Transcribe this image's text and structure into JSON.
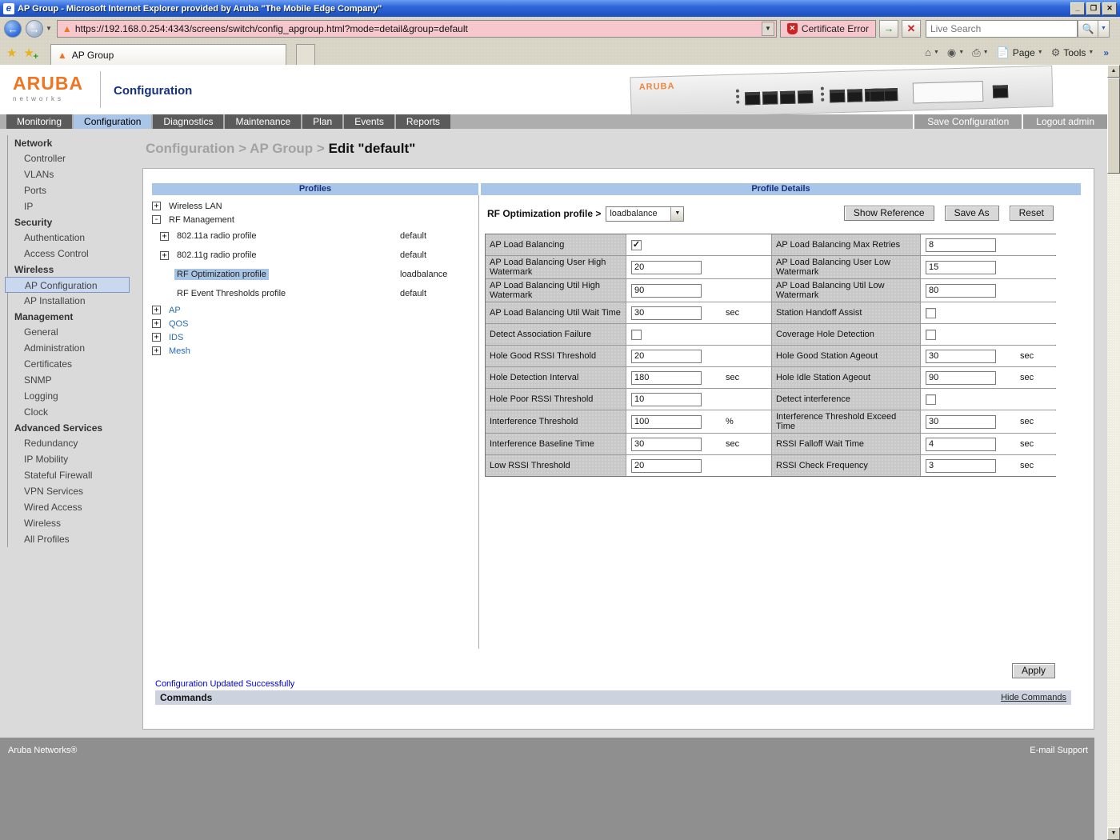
{
  "window": {
    "title": "AP Group - Microsoft Internet Explorer provided by Aruba \"The Mobile Edge Company\""
  },
  "browser": {
    "url": "https://192.168.0.254:4343/screens/switch/config_apgroup.html?mode=detail&group=default",
    "certificate_error": "Certificate Error",
    "search_placeholder": "Live Search",
    "tab_title": "AP Group",
    "page_label": "Page",
    "tools_label": "Tools"
  },
  "header": {
    "brand": "ARUBA",
    "brand_sub": "networks",
    "app_title": "Configuration"
  },
  "navbar": {
    "tabs": [
      {
        "label": "Monitoring",
        "active": false
      },
      {
        "label": "Configuration",
        "active": true
      },
      {
        "label": "Diagnostics",
        "active": false
      },
      {
        "label": "Maintenance",
        "active": false
      },
      {
        "label": "Plan",
        "active": false
      },
      {
        "label": "Events",
        "active": false
      },
      {
        "label": "Reports",
        "active": false
      }
    ],
    "save_configuration": "Save Configuration",
    "logout": "Logout admin"
  },
  "sidebar": {
    "selected": "AP Configuration",
    "sections": [
      {
        "title": "Network",
        "items": [
          "Controller",
          "VLANs",
          "Ports",
          "IP"
        ]
      },
      {
        "title": "Security",
        "items": [
          "Authentication",
          "Access Control"
        ]
      },
      {
        "title": "Wireless",
        "items": [
          "AP Configuration",
          "AP Installation"
        ]
      },
      {
        "title": "Management",
        "items": [
          "General",
          "Administration",
          "Certificates",
          "SNMP",
          "Logging",
          "Clock"
        ]
      },
      {
        "title": "Advanced Services",
        "items": [
          "Redundancy",
          "IP Mobility",
          "Stateful Firewall",
          "VPN Services",
          "Wired Access",
          "Wireless",
          "All Profiles"
        ]
      }
    ]
  },
  "breadcrumb": {
    "path": "Configuration > AP Group >",
    "current": "Edit \"default\""
  },
  "profiles": {
    "title": "Profiles",
    "tree": [
      {
        "label": "Wireless LAN",
        "toggle": "+",
        "indent": 0,
        "value": "",
        "link": false,
        "selected": false
      },
      {
        "label": "RF Management",
        "toggle": "-",
        "indent": 0,
        "value": "",
        "link": false,
        "selected": false
      },
      {
        "label": "802.11a radio profile",
        "toggle": "+",
        "indent": 1,
        "value": "default",
        "link": false,
        "selected": false
      },
      {
        "label": "802.11g radio profile",
        "toggle": "+",
        "indent": 1,
        "value": "default",
        "link": false,
        "selected": false
      },
      {
        "label": "RF Optimization profile",
        "toggle": "",
        "indent": 1,
        "value": "loadbalance",
        "link": false,
        "selected": true
      },
      {
        "label": "RF Event Thresholds profile",
        "toggle": "",
        "indent": 1,
        "value": "default",
        "link": false,
        "selected": false
      },
      {
        "label": "AP",
        "toggle": "+",
        "indent": 0,
        "value": "",
        "link": true,
        "selected": false
      },
      {
        "label": "QOS",
        "toggle": "+",
        "indent": 0,
        "value": "",
        "link": true,
        "selected": false
      },
      {
        "label": "IDS",
        "toggle": "+",
        "indent": 0,
        "value": "",
        "link": true,
        "selected": false
      },
      {
        "label": "Mesh",
        "toggle": "+",
        "indent": 0,
        "value": "",
        "link": true,
        "selected": false
      }
    ]
  },
  "details": {
    "title": "Profile Details",
    "profile_label": "RF Optimization profile >",
    "profile_select": "loadbalance",
    "buttons": [
      "Show Reference",
      "Save As",
      "Reset"
    ],
    "apply_label": "Apply",
    "rows": [
      {
        "left": {
          "label": "AP Load Balancing",
          "type": "checkbox",
          "checked": true
        },
        "right": {
          "label": "AP Load Balancing Max Retries",
          "type": "text",
          "value": "8"
        }
      },
      {
        "left": {
          "label": "AP Load Balancing User High Watermark",
          "type": "text",
          "value": "20"
        },
        "right": {
          "label": "AP Load Balancing User Low Watermark",
          "type": "text",
          "value": "15"
        }
      },
      {
        "left": {
          "label": "AP Load Balancing Util High Watermark",
          "type": "text",
          "value": "90"
        },
        "right": {
          "label": "AP Load Balancing Util Low Watermark",
          "type": "text",
          "value": "80"
        }
      },
      {
        "left": {
          "label": "AP Load Balancing Util Wait Time",
          "type": "text",
          "value": "30",
          "unit": "sec"
        },
        "right": {
          "label": "Station Handoff Assist",
          "type": "checkbox",
          "checked": false
        }
      },
      {
        "left": {
          "label": "Detect Association Failure",
          "type": "checkbox",
          "checked": false
        },
        "right": {
          "label": "Coverage Hole Detection",
          "type": "checkbox",
          "checked": false
        }
      },
      {
        "left": {
          "label": "Hole Good RSSI Threshold",
          "type": "text",
          "value": "20"
        },
        "right": {
          "label": "Hole Good Station Ageout",
          "type": "text",
          "value": "30",
          "unit": "sec"
        }
      },
      {
        "left": {
          "label": "Hole Detection Interval",
          "type": "text",
          "value": "180",
          "unit": "sec"
        },
        "right": {
          "label": "Hole Idle Station Ageout",
          "type": "text",
          "value": "90",
          "unit": "sec"
        }
      },
      {
        "left": {
          "label": "Hole Poor RSSI Threshold",
          "type": "text",
          "value": "10"
        },
        "right": {
          "label": "Detect interference",
          "type": "checkbox",
          "checked": false
        }
      },
      {
        "left": {
          "label": "Interference Threshold",
          "type": "text",
          "value": "100",
          "unit": "%"
        },
        "right": {
          "label": "Interference Threshold Exceed Time",
          "type": "text",
          "value": "30",
          "unit": "sec"
        }
      },
      {
        "left": {
          "label": "Interference Baseline Time",
          "type": "text",
          "value": "30",
          "unit": "sec"
        },
        "right": {
          "label": "RSSI Falloff Wait Time",
          "type": "text",
          "value": "4",
          "unit": "sec"
        }
      },
      {
        "left": {
          "label": "Low RSSI Threshold",
          "type": "text",
          "value": "20"
        },
        "right": {
          "label": "RSSI Check Frequency",
          "type": "text",
          "value": "3",
          "unit": "sec"
        }
      }
    ]
  },
  "commands": {
    "status": "Configuration Updated Successfully",
    "title": "Commands",
    "hide_link": "Hide Commands"
  },
  "footer": {
    "left": "Aruba Networks®",
    "right": "E-mail Support"
  },
  "colors": {
    "titlebar_blue": "#2f66d8",
    "url_error_pink": "#f6c8ce",
    "panel_header_blue": "#a9c5e8",
    "nav_active_blue": "#a9c5e8",
    "nav_dark": "#5b5b5b",
    "aruba_orange": "#ee7622",
    "navy_text": "#17317f",
    "footer_gray": "#8f8f8f",
    "link_blue": "#2a6db5"
  }
}
